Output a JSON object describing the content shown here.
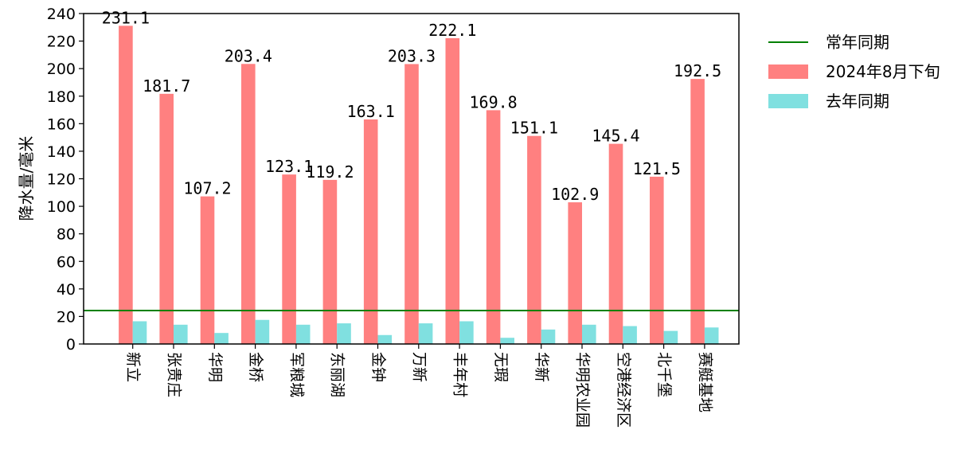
{
  "chart_data": {
    "type": "bar",
    "ylabel": "降水量/毫米",
    "xlabel": "",
    "title": "",
    "ylim": [
      0,
      240
    ],
    "yticks": [
      0,
      20,
      40,
      60,
      80,
      100,
      120,
      140,
      160,
      180,
      200,
      220,
      240
    ],
    "grid": false,
    "legend_position": "outside-top-right",
    "categories": [
      "新立",
      "张贵庄",
      "华明",
      "金桥",
      "军粮城",
      "东丽湖",
      "金钟",
      "万新",
      "丰年村",
      "无瑕",
      "华新",
      "华明农业园",
      "空港经济区",
      "北千堡",
      "赛艇基地"
    ],
    "series": [
      {
        "name": "2024年8月下旬",
        "color": "#ff8080",
        "values": [
          231.1,
          181.7,
          107.2,
          203.4,
          123.1,
          119.2,
          163.1,
          203.3,
          222.1,
          169.8,
          151.1,
          102.9,
          145.4,
          121.5,
          192.5
        ],
        "labels": [
          "231.1",
          "181.7",
          "107.2",
          "203.4",
          "123.1",
          "119.2",
          "163.1",
          "203.3",
          "222.1",
          "169.8",
          "151.1",
          "102.9",
          "145.4",
          "121.5",
          "192.5"
        ]
      },
      {
        "name": "去年同期",
        "color": "#80e0e0",
        "values": [
          16.5,
          14.0,
          8.0,
          17.5,
          14.0,
          15.0,
          6.5,
          15.0,
          16.5,
          4.5,
          10.5,
          14.0,
          13.0,
          9.5,
          12.0
        ]
      }
    ],
    "reference_lines": [
      {
        "name": "常年同期",
        "value": 24.3,
        "color": "#008000"
      }
    ],
    "legend": [
      "常年同期",
      "2024年8月下旬",
      "去年同期"
    ]
  }
}
